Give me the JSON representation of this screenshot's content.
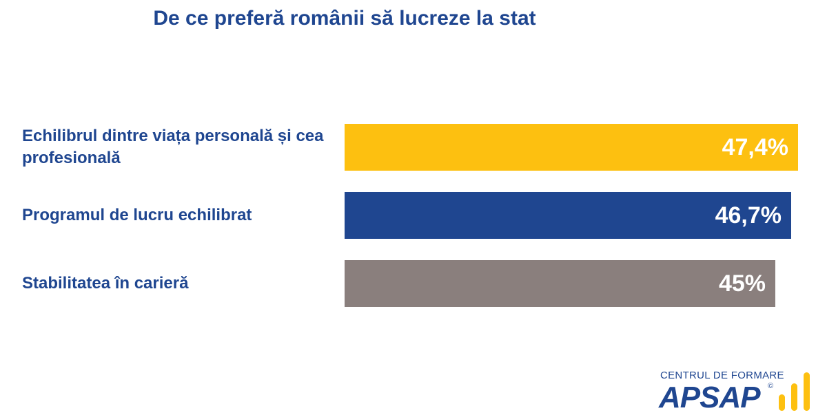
{
  "title": "De ce preferă românii să lucreze la stat",
  "chart_data": {
    "type": "bar",
    "orientation": "horizontal",
    "title": "De ce preferă românii să lucreze la stat",
    "xlim": [
      0,
      47.4
    ],
    "categories": [
      "Echilibrul dintre viața personală și cea profesională",
      "Programul de lucru echilibrat",
      "Stabilitatea în carieră"
    ],
    "values": [
      47.4,
      46.7,
      45
    ],
    "value_labels": [
      "47,4%",
      "46,7%",
      "45%"
    ],
    "colors": [
      "#fdc010",
      "#1f4690",
      "#8a7f7d"
    ],
    "unit": "%",
    "grid": false,
    "legend": "none"
  },
  "logo": {
    "tagline": "CENTRUL DE FORMARE",
    "name": "APSAP",
    "mark": "©",
    "icon": "bar-chart-icon",
    "accent_color": "#fdc010"
  }
}
